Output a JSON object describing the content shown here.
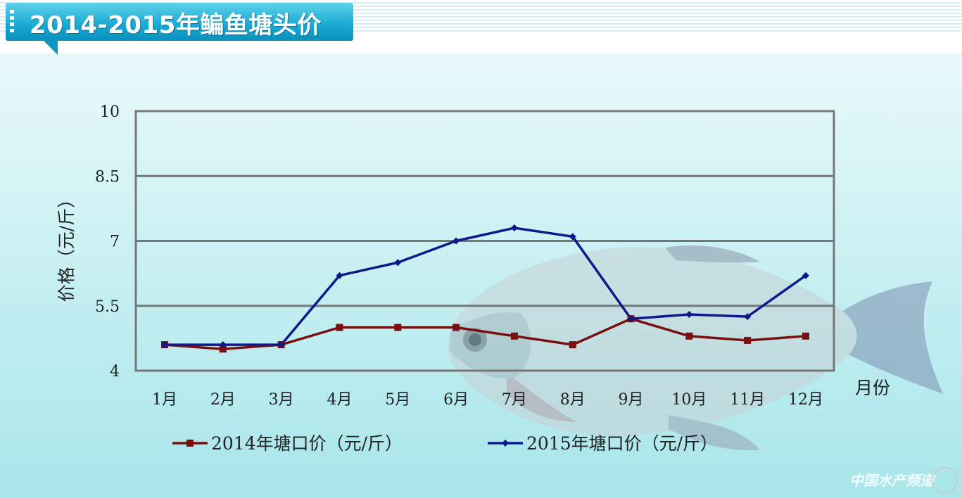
{
  "page": {
    "title": "2014-2015年鳊鱼塘头价",
    "watermark": "中国水产频道"
  },
  "chart_data": {
    "type": "line",
    "categories": [
      "1月",
      "2月",
      "3月",
      "4月",
      "5月",
      "6月",
      "7月",
      "8月",
      "9月",
      "10月",
      "11月",
      "12月"
    ],
    "ylabel": "价格（元/斤）",
    "xlabel": "月份",
    "ylim": [
      4,
      10
    ],
    "yticks": [
      "4",
      "5.5",
      "7",
      "8.5",
      "10"
    ],
    "grid": true,
    "legend_position": "bottom",
    "series": [
      {
        "name": "2014年塘口价（元/斤）",
        "color": "#7a0f0f",
        "marker": "square",
        "values": [
          4.6,
          4.5,
          4.6,
          5.0,
          5.0,
          5.0,
          4.8,
          4.6,
          5.2,
          4.8,
          4.7,
          4.8
        ]
      },
      {
        "name": "2015年塘口价（元/斤）",
        "color": "#0d1a8c",
        "marker": "diamond",
        "values": [
          4.6,
          4.6,
          4.6,
          6.2,
          6.5,
          7.0,
          7.3,
          7.1,
          5.2,
          5.3,
          5.25,
          6.2
        ]
      }
    ]
  }
}
